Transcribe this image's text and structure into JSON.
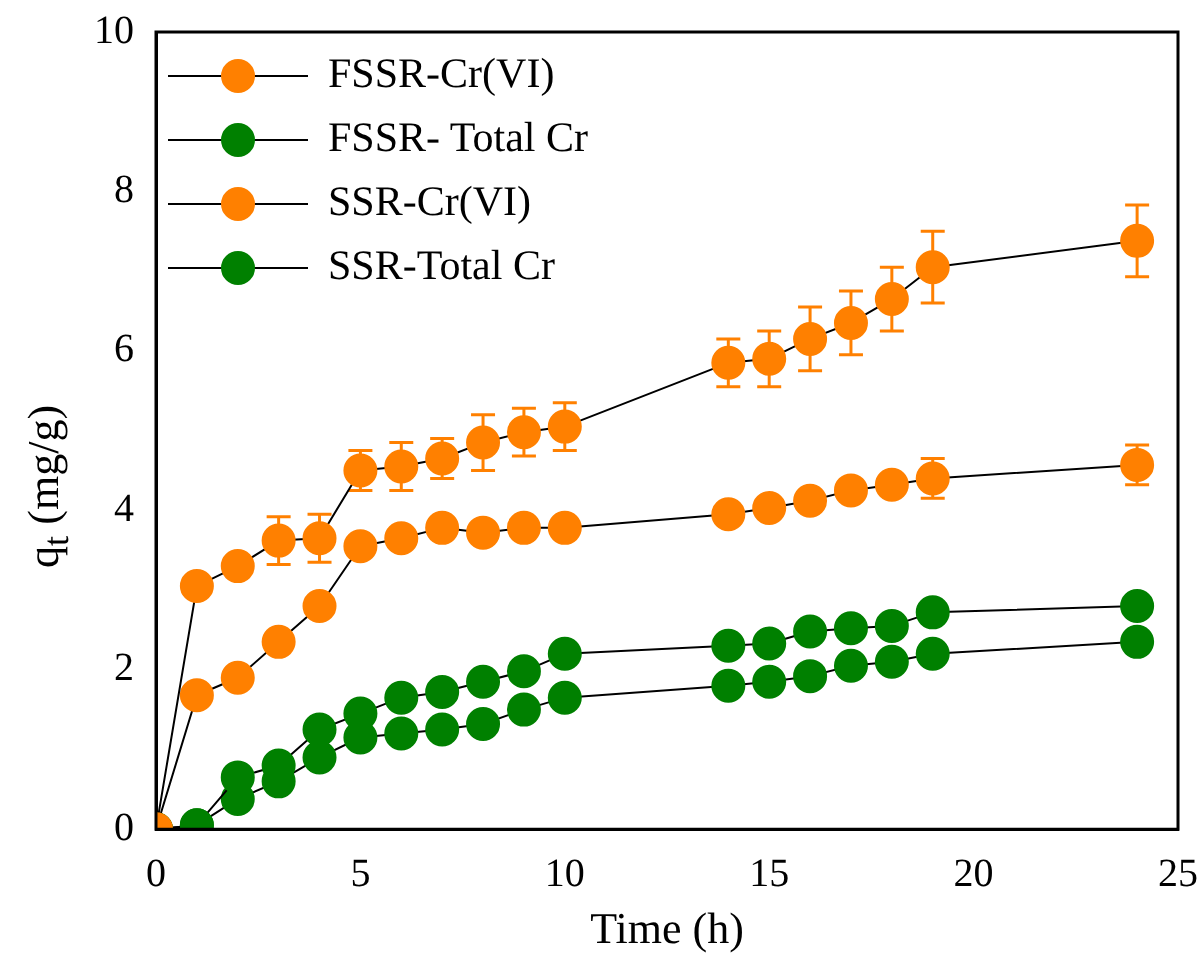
{
  "chart_data": {
    "type": "line",
    "xlabel": "Time (h)",
    "ylabel": "q$_{t}$ (mg/g)",
    "x": [
      0,
      1,
      2,
      3,
      4,
      5,
      6,
      7,
      8,
      9,
      10,
      14,
      15,
      16,
      17,
      18,
      19,
      24
    ],
    "series": [
      {
        "name": "FSSR-Cr(VI)",
        "color": "#ff8000",
        "values": [
          0,
          3.05,
          3.3,
          3.62,
          3.65,
          4.5,
          4.55,
          4.65,
          4.85,
          4.98,
          5.05,
          5.85,
          5.9,
          6.15,
          6.35,
          6.65,
          7.05,
          7.38
        ],
        "errors": [
          null,
          null,
          null,
          0.3,
          0.3,
          0.25,
          0.3,
          0.25,
          0.35,
          0.3,
          0.3,
          0.3,
          0.35,
          0.4,
          0.4,
          0.4,
          0.45,
          0.45
        ]
      },
      {
        "name": "FSSR- Total Cr",
        "color": "#008000",
        "values": [
          0,
          0.05,
          0.65,
          0.8,
          1.25,
          1.45,
          1.65,
          1.72,
          1.85,
          1.98,
          2.2,
          2.3,
          2.33,
          2.48,
          2.52,
          2.55,
          2.72,
          2.8
        ]
      },
      {
        "name": "SSR-Cr(VI)",
        "color": "#ff8000",
        "values": [
          0,
          1.68,
          1.9,
          2.35,
          2.8,
          3.55,
          3.65,
          3.78,
          3.72,
          3.78,
          3.78,
          3.95,
          4.03,
          4.12,
          4.25,
          4.32,
          4.4,
          4.57
        ],
        "errors": [
          null,
          null,
          null,
          null,
          null,
          null,
          null,
          null,
          null,
          null,
          null,
          null,
          null,
          null,
          null,
          null,
          0.25,
          0.25
        ]
      },
      {
        "name": "SSR-Total Cr",
        "color": "#008000",
        "values": [
          0,
          0.05,
          0.38,
          0.6,
          0.9,
          1.15,
          1.2,
          1.25,
          1.32,
          1.5,
          1.65,
          1.8,
          1.85,
          1.92,
          2.05,
          2.1,
          2.2,
          2.35
        ]
      }
    ],
    "xlim": [
      0,
      25
    ],
    "xticks": [
      0,
      5,
      10,
      15,
      20,
      25
    ],
    "ylim": [
      0,
      10
    ],
    "yticks": [
      0,
      2,
      4,
      6,
      8,
      10
    ],
    "grid": false,
    "legend": "top left",
    "marker": "circle",
    "line_style": "solid"
  }
}
